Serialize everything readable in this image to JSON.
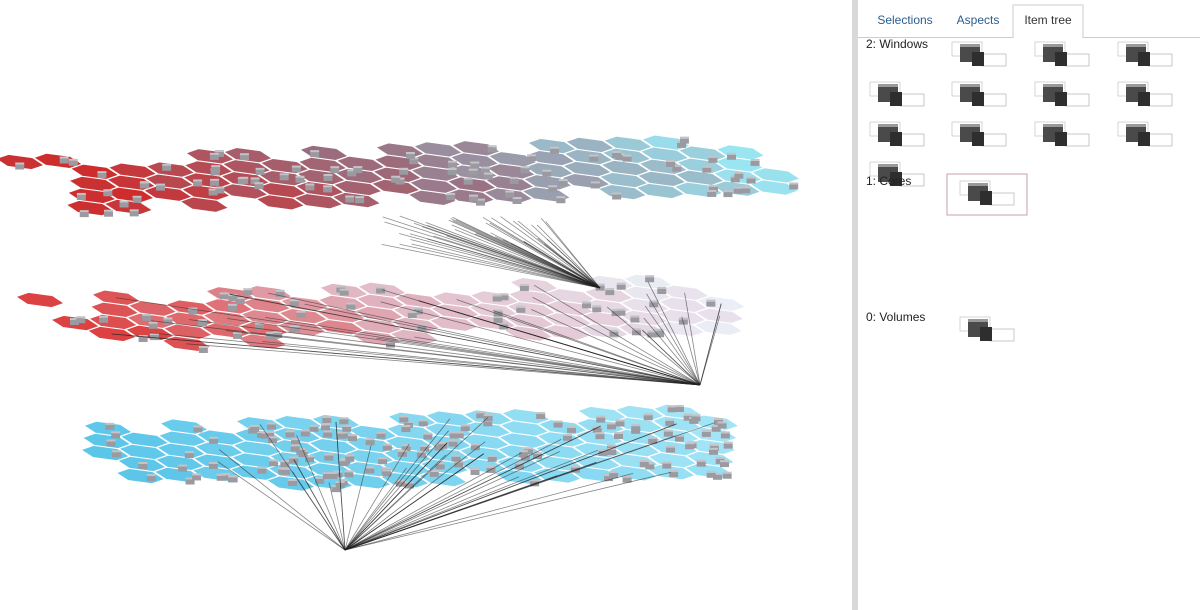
{
  "tabs": [
    "Selections",
    "Aspects",
    "Item tree"
  ],
  "active_tab": 2,
  "levels": [
    {
      "label": "2: Windows",
      "items": 12
    },
    {
      "label": "1: Cores",
      "items": 1
    },
    {
      "label": "0: Volumes",
      "items": 1
    }
  ]
}
